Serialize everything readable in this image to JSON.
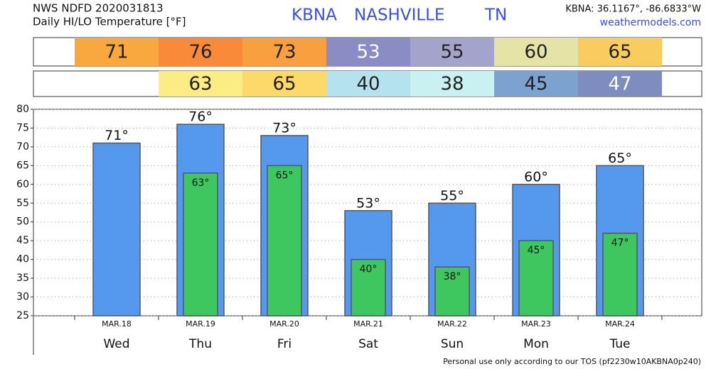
{
  "chart_data": {
    "type": "bar",
    "title": "Daily HI/LO Temperature [°F]",
    "source": "NWS NDFD 2020031813",
    "station": "KBNA",
    "city": "NASHVILLE",
    "state": "TN",
    "coords": "KBNA: 36.1167°, -86.6833°W",
    "site": "weathermodels.com",
    "footer": "Personal use only according to our TOS (pf2230w10AKBNA0p240)",
    "categories": [
      "Wed",
      "Thu",
      "Fri",
      "Sat",
      "Sun",
      "Mon",
      "Tue"
    ],
    "dates": [
      "MAR.18",
      "MAR.19",
      "MAR.20",
      "MAR.21",
      "MAR.22",
      "MAR.23",
      "MAR.24"
    ],
    "series": [
      {
        "name": "HI",
        "color": "#5599ee",
        "values": [
          71,
          76,
          73,
          53,
          55,
          60,
          65
        ],
        "value_labels": [
          "71°",
          "76°",
          "73°",
          "53°",
          "55°",
          "60°",
          "65°"
        ],
        "box_colors": [
          "#f8a83c",
          "#f98a3a",
          "#f8a040",
          "#8b8cc4",
          "#a3a3cc",
          "#e6e3a6",
          "#f8cc5e"
        ],
        "box_text_colors": [
          "#222",
          "#222",
          "#222",
          "#fff",
          "#222",
          "#222",
          "#222"
        ]
      },
      {
        "name": "LO",
        "color": "#3ec75e",
        "values": [
          null,
          63,
          65,
          40,
          38,
          45,
          47
        ],
        "value_labels": [
          null,
          "63°",
          "65°",
          "40°",
          "38°",
          "45°",
          "47°"
        ],
        "box_colors": [
          null,
          "#fcec84",
          "#fdd96a",
          "#b4e3ef",
          "#c9f1f1",
          "#7ea2cf",
          "#7e8dc0"
        ],
        "box_text_colors": [
          null,
          "#222",
          "#222",
          "#222",
          "#222",
          "#222",
          "#fff"
        ]
      }
    ],
    "ylim": [
      25,
      80
    ],
    "yticks": [
      25,
      30,
      35,
      40,
      45,
      50,
      55,
      60,
      65,
      70,
      75,
      80
    ],
    "grid": true
  }
}
